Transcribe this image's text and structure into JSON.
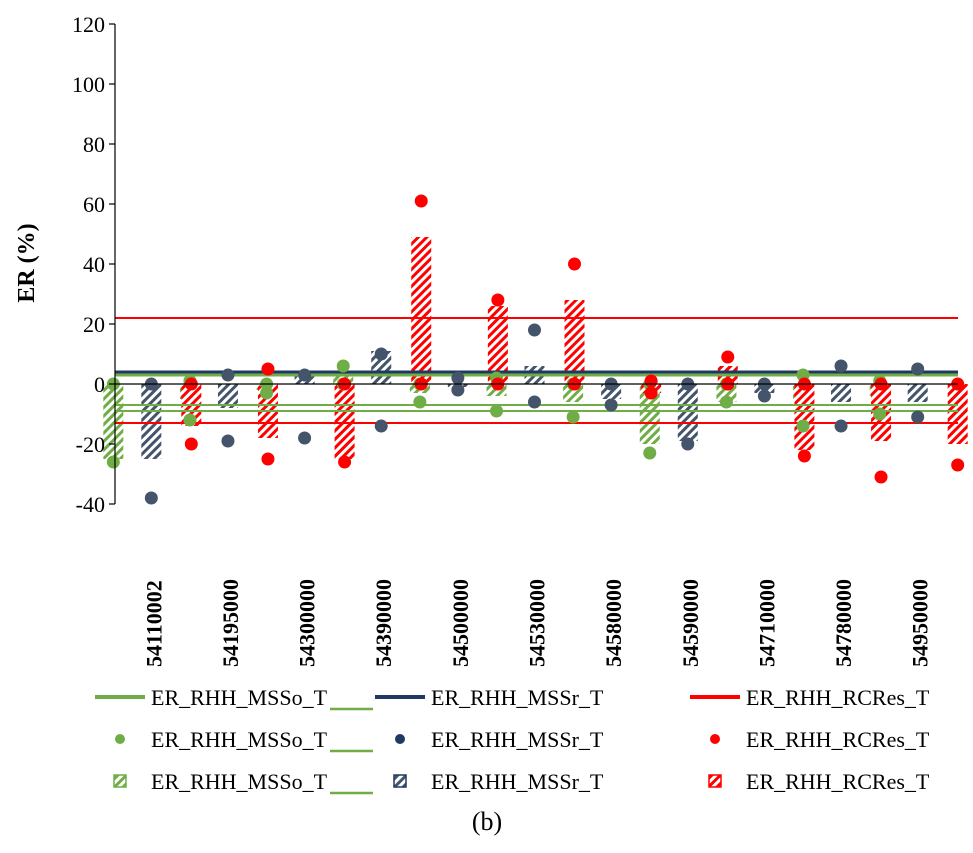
{
  "chart_data": {
    "type": "bar",
    "caption": "(b)",
    "ylabel": "ER (%)",
    "xlabel": "",
    "ylim": [
      -40,
      120
    ],
    "yticks": [
      -40,
      -20,
      0,
      20,
      40,
      60,
      80,
      100,
      120
    ],
    "grid": false,
    "legend_position": "bottom",
    "categories": [
      "54110002",
      "54195000",
      "54300000",
      "54390000",
      "54500000",
      "54530000",
      "54580000",
      "54590000",
      "54710000",
      "54780000",
      "54950000"
    ],
    "colors": {
      "mss_o": "#70ad47",
      "mss_r": "#44546a",
      "mss_r_line": "#1f3864",
      "rcres": "#ff0000"
    },
    "bars": [
      {
        "name": "ER_RHH_MSSo_T",
        "color": "#70ad47",
        "values": [
          -25,
          -5,
          -2,
          4,
          -3,
          -4,
          -6,
          -20,
          -6,
          -6,
          -4
        ]
      },
      {
        "name": "ER_RHH_MSSr_T",
        "color": "#44546a",
        "values": [
          -25,
          -8,
          3,
          11,
          -1,
          6,
          -5,
          -19,
          -3,
          -6,
          -6
        ]
      },
      {
        "name": "ER_RHH_RCRes_T",
        "color": "#ff0000",
        "values": [
          -14,
          -18,
          -25,
          49,
          26,
          28,
          -3,
          6,
          -22,
          -19,
          -20
        ]
      }
    ],
    "points": [
      {
        "name": "ER_RHH_MSSo_T",
        "color": "#70ad47",
        "high": [
          0,
          1,
          0,
          6,
          0,
          2,
          0,
          0,
          0,
          3,
          1
        ],
        "low": [
          -26,
          -12,
          -3,
          0,
          -6,
          -9,
          -11,
          -23,
          -6,
          -14,
          -10
        ]
      },
      {
        "name": "ER_RHH_MSSr_T",
        "color": "#44546a",
        "high": [
          0,
          3,
          3,
          10,
          2,
          18,
          0,
          0,
          0,
          6,
          5
        ],
        "low": [
          -38,
          -19,
          -18,
          -14,
          -2,
          -6,
          -7,
          -20,
          -4,
          -14,
          -11
        ]
      },
      {
        "name": "ER_RHH_RCRes_T",
        "color": "#ff0000",
        "high": [
          0,
          5,
          0,
          61,
          28,
          40,
          1,
          9,
          0,
          0,
          0
        ],
        "low": [
          -20,
          -25,
          -26,
          0,
          0,
          0,
          -3,
          0,
          -24,
          -31,
          -27
        ]
      }
    ],
    "lines": [
      {
        "name": "ER_RHH_MSSo_T",
        "color": "#70ad47",
        "y": 3,
        "width": 3
      },
      {
        "name": "ER_RHH_MSSr_T",
        "color": "#1f3864",
        "y": 4,
        "width": 3
      },
      {
        "name": "ER_RHH_RCRes_T",
        "color": "#ff0000",
        "y": 22,
        "width": 2
      },
      {
        "name": "ER_RHH_RCRes_T",
        "color": "#ff0000",
        "y": -13,
        "width": 2
      },
      {
        "name": "ER_RHH_MSSo_T",
        "color": "#70ad47",
        "y": -7,
        "width": 2
      },
      {
        "name": "ER_RHH_MSSo_T",
        "color": "#70ad47",
        "y": -9,
        "width": 2
      }
    ],
    "legend": [
      {
        "kind": "line",
        "color": "#70ad47",
        "label": "ER_RHH_MSSo_T"
      },
      {
        "kind": "line",
        "color": "#1f3864",
        "label": "ER_RHH_MSSr_T",
        "marker": "#70ad47"
      },
      {
        "kind": "line",
        "color": "#ff0000",
        "label": "ER_RHH_RCRes_T"
      },
      {
        "kind": "dot",
        "color": "#70ad47",
        "label": "ER_RHH_MSSo_T"
      },
      {
        "kind": "dot",
        "color": "#1f3864",
        "label": "ER_RHH_MSSr_T",
        "marker": "#70ad47"
      },
      {
        "kind": "dot",
        "color": "#ff0000",
        "label": "ER_RHH_RCRes_T"
      },
      {
        "kind": "pattern",
        "color": "#70ad47",
        "label": "ER_RHH_MSSo_T"
      },
      {
        "kind": "pattern",
        "color": "#1f3864",
        "label": "ER_RHH_MSSr_T",
        "marker": "#70ad47"
      },
      {
        "kind": "pattern",
        "color": "#ff0000",
        "label": "ER_RHH_RCRes_T"
      }
    ]
  }
}
